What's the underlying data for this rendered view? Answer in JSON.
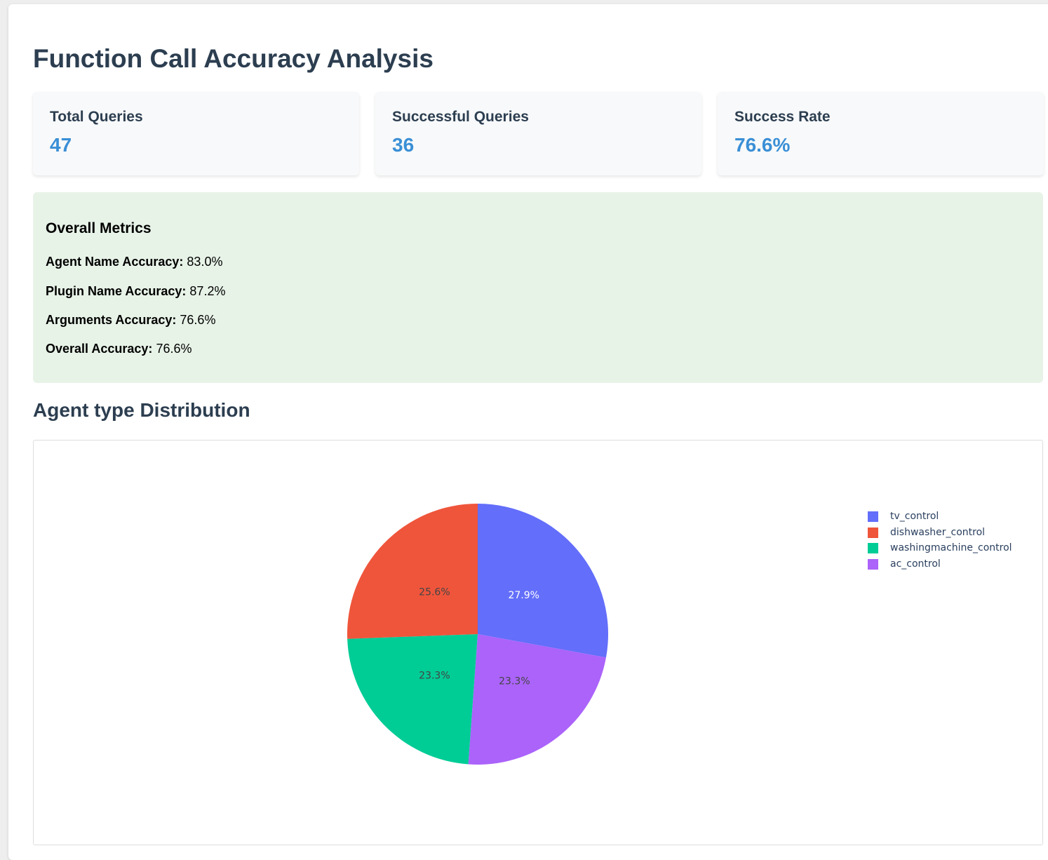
{
  "page": {
    "title": "Function Call Accuracy Analysis"
  },
  "stats": [
    {
      "label": "Total Queries",
      "value": "47"
    },
    {
      "label": "Successful Queries",
      "value": "36"
    },
    {
      "label": "Success Rate",
      "value": "76.6%"
    }
  ],
  "metrics": {
    "title": "Overall Metrics",
    "items": [
      {
        "label": "Agent Name Accuracy:",
        "value": "83.0%"
      },
      {
        "label": "Plugin Name Accuracy:",
        "value": "87.2%"
      },
      {
        "label": "Arguments Accuracy:",
        "value": "76.6%"
      },
      {
        "label": "Overall Accuracy:",
        "value": "76.6%"
      }
    ]
  },
  "distribution": {
    "title": "Agent type Distribution"
  },
  "chart_data": {
    "type": "pie",
    "labels": [
      "tv_control",
      "dishwasher_control",
      "washingmachine_control",
      "ac_control"
    ],
    "values": [
      27.9,
      25.6,
      23.3,
      23.3
    ],
    "slice_labels": [
      "27.9%",
      "25.6%",
      "23.3%",
      "23.3%"
    ],
    "slice_order": [
      "tv_control",
      "ac_control",
      "washingmachine_control",
      "dishwasher_control"
    ],
    "direction": "clockwise",
    "start": "12 o'clock",
    "colors": {
      "tv_control": "#636efa",
      "dishwasher_control": "#ef553b",
      "washingmachine_control": "#00cc96",
      "ac_control": "#ab63fa"
    },
    "label_colors": {
      "tv_control": "#ffffff",
      "dishwasher_control": "#444444",
      "washingmachine_control": "#444444",
      "ac_control": "#444444"
    },
    "legend_position": "top-right"
  }
}
